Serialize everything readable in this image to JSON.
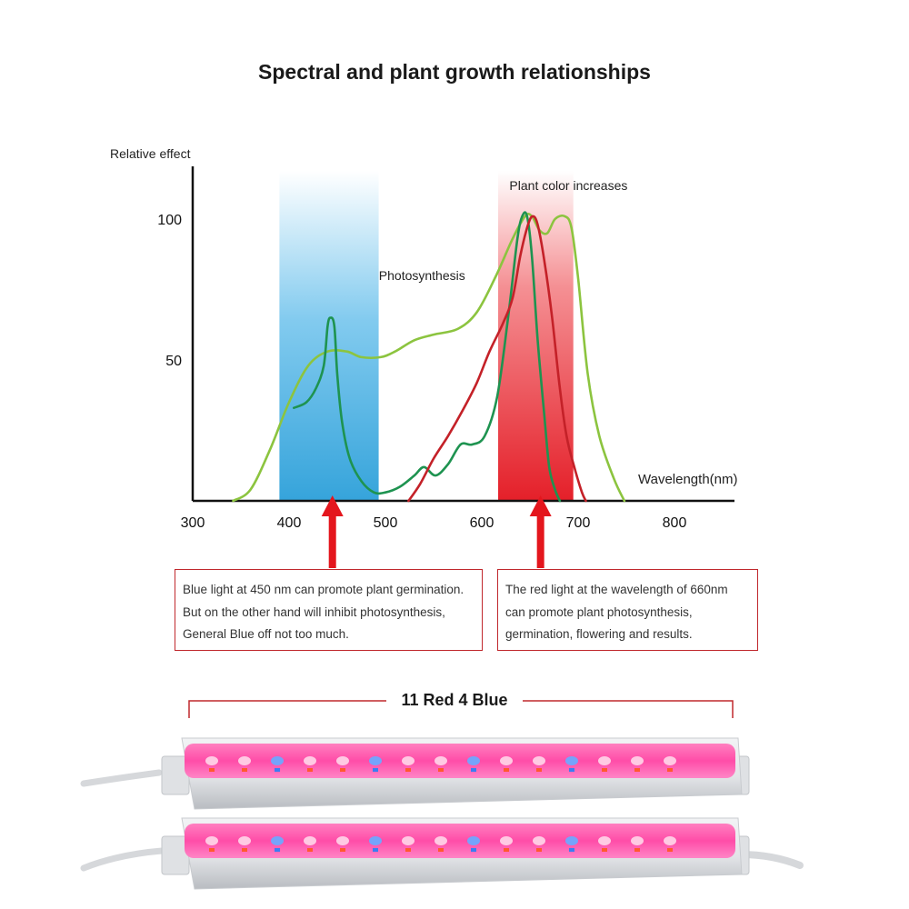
{
  "title": "Spectral and plant growth relationships",
  "chart_data": {
    "type": "line",
    "ylabel": "Relative effect",
    "xlabel": "Wavelength(nm)",
    "xlim": [
      300,
      860
    ],
    "ylim": [
      0,
      120
    ],
    "x_ticks": [
      300,
      400,
      500,
      600,
      700,
      800
    ],
    "y_ticks": [
      50,
      100
    ],
    "highlight_bands": [
      {
        "from": 390,
        "to": 493,
        "color": "#38a9e0"
      },
      {
        "from": 617,
        "to": 695,
        "color": "#e8202a"
      }
    ],
    "annotations": [
      {
        "text": "Plant color increases",
        "x": 690,
        "y": 112
      },
      {
        "text": "Photosynthesis",
        "x": 538,
        "y": 80
      }
    ],
    "series": [
      {
        "color": "#8cc43f",
        "points": [
          [
            342,
            0
          ],
          [
            360,
            4
          ],
          [
            380,
            18
          ],
          [
            400,
            35
          ],
          [
            420,
            48
          ],
          [
            440,
            53
          ],
          [
            460,
            53
          ],
          [
            475,
            51
          ],
          [
            495,
            51
          ],
          [
            510,
            53
          ],
          [
            530,
            57
          ],
          [
            550,
            59
          ],
          [
            575,
            61
          ],
          [
            595,
            67
          ],
          [
            615,
            80
          ],
          [
            632,
            93
          ],
          [
            645,
            101
          ],
          [
            652,
            101
          ],
          [
            660,
            96
          ],
          [
            668,
            95
          ],
          [
            676,
            100
          ],
          [
            686,
            101
          ],
          [
            693,
            97
          ],
          [
            700,
            79
          ],
          [
            710,
            45
          ],
          [
            722,
            23
          ],
          [
            737,
            8
          ],
          [
            748,
            0
          ]
        ]
      },
      {
        "color": "#1e9350",
        "points": [
          [
            405,
            33
          ],
          [
            418,
            35
          ],
          [
            428,
            40
          ],
          [
            436,
            48
          ],
          [
            440,
            62
          ],
          [
            443,
            65
          ],
          [
            447,
            62
          ],
          [
            450,
            45
          ],
          [
            455,
            28
          ],
          [
            463,
            15
          ],
          [
            475,
            7
          ],
          [
            488,
            3
          ],
          [
            500,
            3
          ],
          [
            515,
            5
          ],
          [
            530,
            9
          ],
          [
            540,
            12
          ],
          [
            552,
            9
          ],
          [
            565,
            13
          ],
          [
            578,
            20
          ],
          [
            590,
            20
          ],
          [
            603,
            23
          ],
          [
            616,
            37
          ],
          [
            628,
            67
          ],
          [
            637,
            93
          ],
          [
            642,
            101
          ],
          [
            647,
            101
          ],
          [
            652,
            87
          ],
          [
            658,
            57
          ],
          [
            665,
            30
          ],
          [
            670,
            12
          ],
          [
            676,
            4
          ],
          [
            681,
            0
          ]
        ]
      },
      {
        "color": "#c42128",
        "points": [
          [
            524,
            0
          ],
          [
            536,
            6
          ],
          [
            550,
            15
          ],
          [
            565,
            23
          ],
          [
            580,
            32
          ],
          [
            595,
            42
          ],
          [
            608,
            53
          ],
          [
            622,
            63
          ],
          [
            632,
            72
          ],
          [
            640,
            87
          ],
          [
            648,
            98
          ],
          [
            653,
            101
          ],
          [
            658,
            98
          ],
          [
            665,
            85
          ],
          [
            673,
            65
          ],
          [
            681,
            40
          ],
          [
            688,
            23
          ],
          [
            696,
            12
          ],
          [
            704,
            3
          ],
          [
            708,
            0
          ]
        ]
      }
    ],
    "arrows": [
      445,
      661
    ]
  },
  "notes": [
    {
      "lines": [
        "Blue light at 450 nm can promote plant germination.",
        "But on the other hand will inhibit photosynthesis,",
        "General Blue off not too much."
      ]
    },
    {
      "lines": [
        "The red light at the wavelength of 660nm",
        "can promote plant photosynthesis,",
        "germination, flowering and results."
      ]
    }
  ],
  "product": {
    "label": "11 Red 4 Blue",
    "led_sequence": [
      "R",
      "R",
      "B",
      "R",
      "R",
      "B",
      "R",
      "R",
      "B",
      "R",
      "R",
      "B",
      "R",
      "R",
      "R"
    ],
    "colors": {
      "red": "#ff3d8a",
      "blue": "#6fa8ff",
      "tube": "#e7e9ec"
    }
  }
}
